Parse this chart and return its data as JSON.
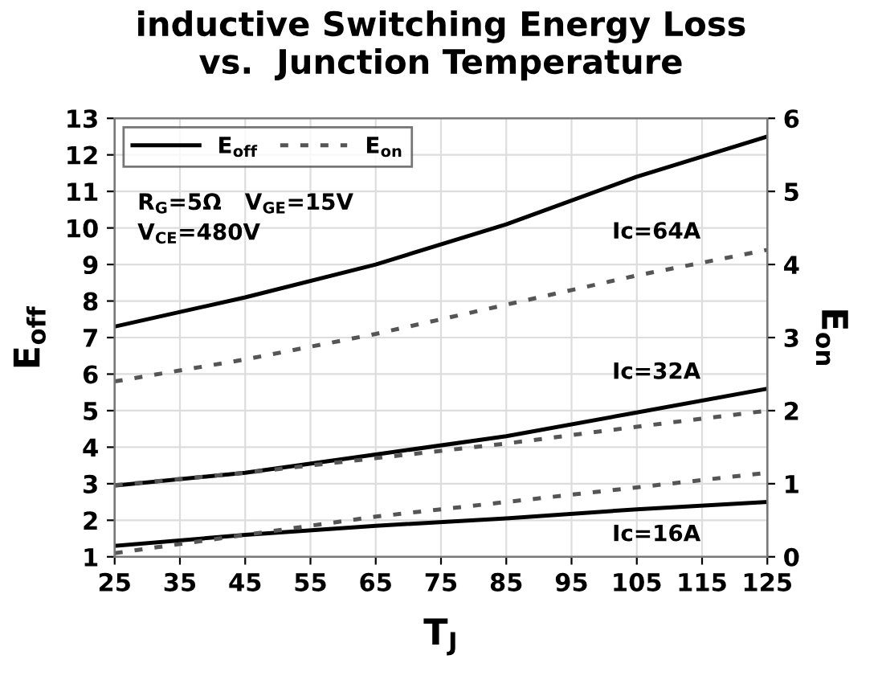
{
  "chart_data": {
    "type": "line",
    "title": "inductive Switching Energy Loss\nvs.  Junction Temperature",
    "xlabel": "T$_{J}$",
    "ylabel": "E$_{off}$",
    "y2label": "E$_{on}$",
    "x": [
      25,
      45,
      65,
      85,
      105,
      125
    ],
    "series": [
      {
        "name": "E$_{off}$",
        "color": "#000000",
        "line_style": "solid",
        "values": [
          7.3,
          8.1,
          9.0,
          10.1,
          11.4,
          12.5
        ]
      },
      {
        "name": "E$_{on}$",
        "color": "#555555",
        "line_style": "dashed",
        "axis": "y2",
        "values": [
          2.4,
          2.7,
          3.05,
          3.45,
          3.85,
          4.2
        ]
      },
      {
        "color": "#000000",
        "line_style": "solid",
        "values": [
          2.95,
          3.3,
          3.8,
          4.3,
          4.95,
          5.6
        ]
      },
      {
        "color": "#555555",
        "line_style": "dashed",
        "axis": "y2",
        "values": [
          0.98,
          1.15,
          1.35,
          1.55,
          1.78,
          2.0
        ]
      },
      {
        "color": "#000000",
        "line_style": "solid",
        "values": [
          1.3,
          1.6,
          1.85,
          2.05,
          2.3,
          2.5
        ]
      },
      {
        "color": "#555555",
        "line_style": "dashed",
        "axis": "y2",
        "values": [
          0.05,
          0.3,
          0.55,
          0.75,
          0.95,
          1.15
        ]
      }
    ],
    "annotations": [
      "R$_{G}$=5Ω   V$_{GE}$=15V\nV$_{CE}$=480V",
      "Ic=64A",
      "Ic=32A",
      "Ic=16A"
    ],
    "xlim": [
      25,
      125
    ],
    "xticks": [
      25,
      35,
      45,
      55,
      65,
      75,
      85,
      95,
      105,
      115,
      125
    ],
    "ylim": [
      1,
      13
    ],
    "yticks": [
      1,
      2,
      3,
      4,
      5,
      6,
      7,
      8,
      9,
      10,
      11,
      12,
      13
    ],
    "y2lim": [
      0,
      6
    ],
    "y2ticks": [
      0,
      1,
      2,
      3,
      4,
      5,
      6
    ],
    "grid": true,
    "legend": "top left",
    "marker": "none"
  }
}
